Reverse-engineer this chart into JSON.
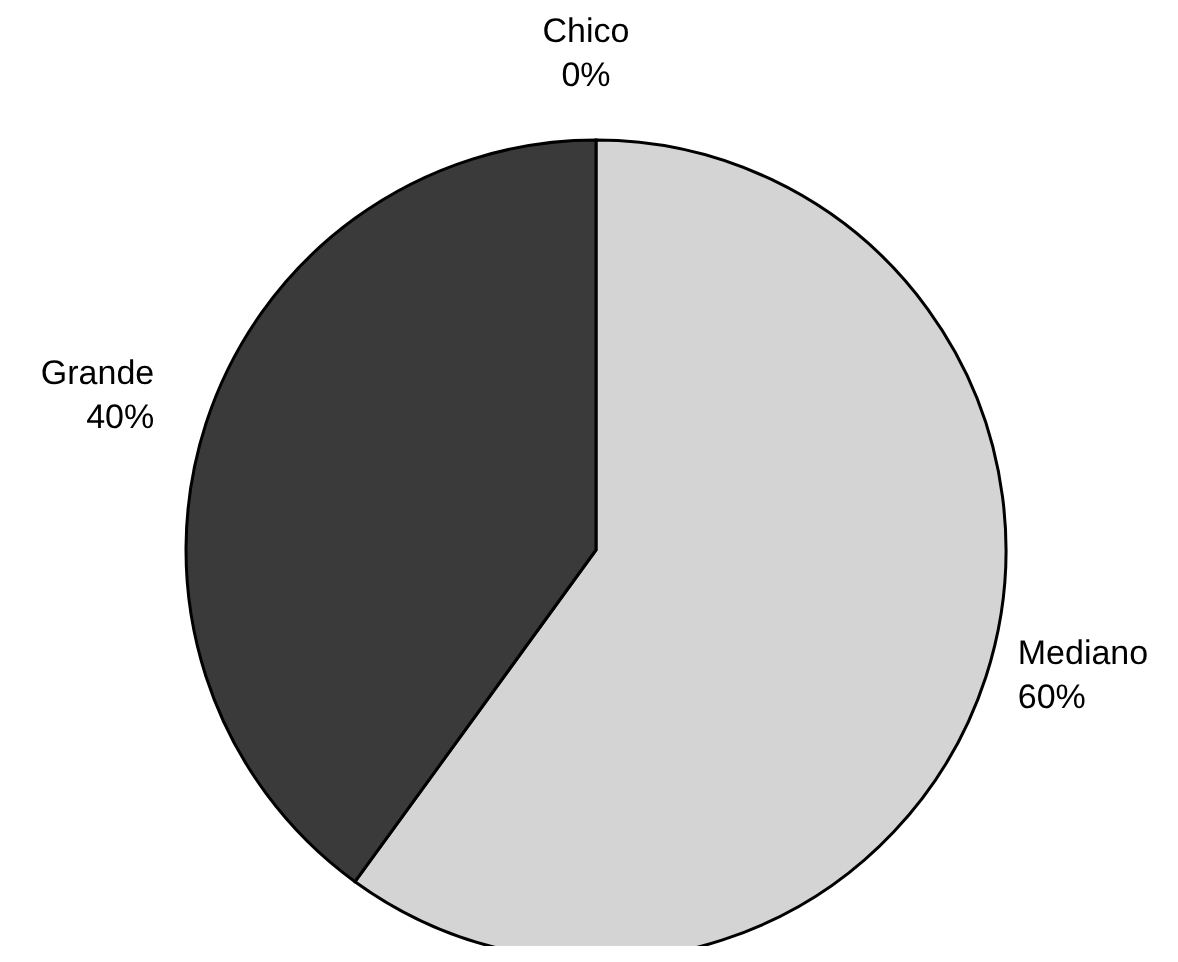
{
  "chart_data": {
    "type": "pie",
    "categories": [
      "Chico",
      "Mediano",
      "Grande"
    ],
    "values": [
      0,
      60,
      40
    ],
    "value_labels": [
      "0%",
      "60%",
      "40%"
    ],
    "colors": [
      "#ffffff",
      "#d4d4d4",
      "#3a3a3a"
    ]
  }
}
